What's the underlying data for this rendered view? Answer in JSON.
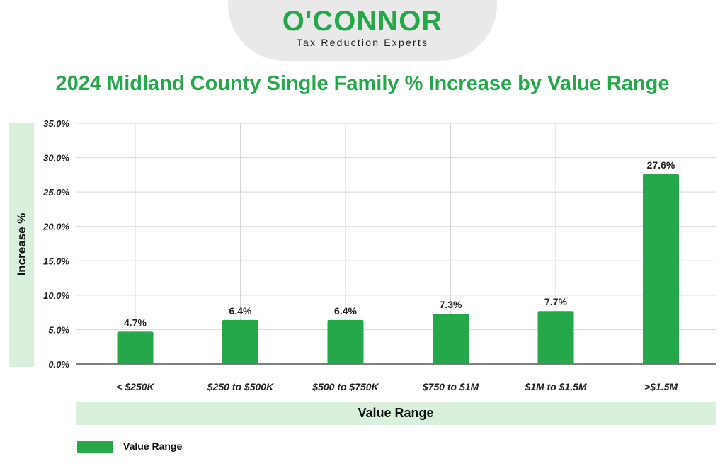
{
  "header": {
    "brand": "O'CONNOR",
    "tagline": "Tax Reduction Experts"
  },
  "colors": {
    "bar": "#25a84a",
    "title": "#25a84a",
    "label_band": "#d9f0dd",
    "grid": "#d6d6d6"
  },
  "chart_data": {
    "type": "bar",
    "title": "2024 Midland County Single Family % Increase by Value Range",
    "xlabel": "Value Range",
    "ylabel": "Increase %",
    "categories": [
      "< $250K",
      "$250 to $500K",
      "$500 to $750K",
      "$750 to $1M",
      "$1M to $1.5M",
      ">$1.5M"
    ],
    "series": [
      {
        "name": "Value Range",
        "values": [
          4.7,
          6.4,
          6.4,
          7.3,
          7.7,
          27.6
        ],
        "data_labels": [
          "4.7%",
          "6.4%",
          "6.4%",
          "7.3%",
          "7.7%",
          "27.6%"
        ]
      }
    ],
    "ylim": [
      0,
      35
    ],
    "yticks": [
      "0.0%",
      "5.0%",
      "10.0%",
      "15.0%",
      "20.0%",
      "25.0%",
      "30.0%",
      "35.0%"
    ],
    "grid": true,
    "legend": "bottom-left"
  }
}
